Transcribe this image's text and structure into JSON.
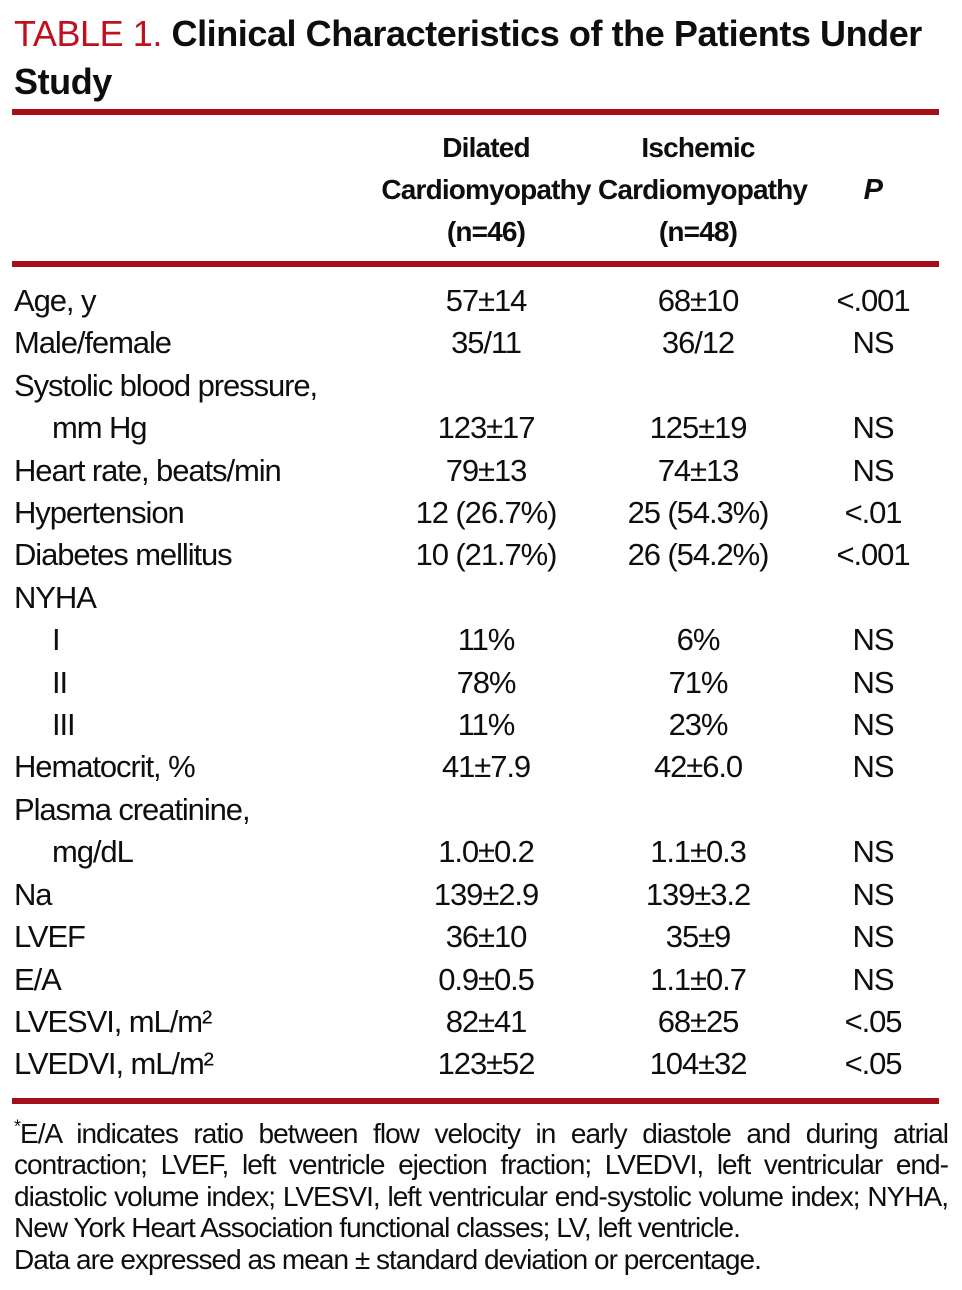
{
  "title": {
    "label": "TABLE 1.",
    "text": "Clinical Characteristics of the Patients Under Study"
  },
  "colors": {
    "title_red": "#c0101e",
    "rule_red": "#a30f1b",
    "text_ink": "#0e0e0e"
  },
  "table": {
    "header": {
      "dilated": {
        "line1": "Dilated",
        "line2": "Cardiomyopathy",
        "line3": "(n=46)"
      },
      "ischemic": {
        "line1": "Ischemic",
        "line2": "Cardiomyopathy",
        "line3": "(n=48)"
      },
      "p_label": "P"
    },
    "rows": [
      {
        "label": "Age, y",
        "indent": false,
        "dilated": "57±14",
        "ischemic": "68±10",
        "p": "<.001"
      },
      {
        "label": "Male/female",
        "indent": false,
        "dilated": "35/11",
        "ischemic": "36/12",
        "p": "NS"
      },
      {
        "label": "Systolic blood pressure,",
        "indent": false,
        "dilated": "",
        "ischemic": "",
        "p": ""
      },
      {
        "label": "mm Hg",
        "indent": true,
        "dilated": "123±17",
        "ischemic": "125±19",
        "p": "NS"
      },
      {
        "label": "Heart rate, beats/min",
        "indent": false,
        "dilated": "79±13",
        "ischemic": "74±13",
        "p": "NS"
      },
      {
        "label": "Hypertension",
        "indent": false,
        "dilated": "12 (26.7%)",
        "ischemic": "25 (54.3%)",
        "p": "<.01"
      },
      {
        "label": "Diabetes mellitus",
        "indent": false,
        "dilated": "10 (21.7%)",
        "ischemic": "26 (54.2%)",
        "p": "<.001"
      },
      {
        "label": "NYHA",
        "indent": false,
        "dilated": "",
        "ischemic": "",
        "p": ""
      },
      {
        "label": "I",
        "indent": true,
        "dilated": "11%",
        "ischemic": "6%",
        "p": "NS"
      },
      {
        "label": "II",
        "indent": true,
        "dilated": "78%",
        "ischemic": "71%",
        "p": "NS"
      },
      {
        "label": "III",
        "indent": true,
        "dilated": "11%",
        "ischemic": "23%",
        "p": "NS"
      },
      {
        "label": "Hematocrit, %",
        "indent": false,
        "dilated": "41±7.9",
        "ischemic": "42±6.0",
        "p": "NS"
      },
      {
        "label": "Plasma creatinine,",
        "indent": false,
        "dilated": "",
        "ischemic": "",
        "p": ""
      },
      {
        "label": "mg/dL",
        "indent": true,
        "dilated": "1.0±0.2",
        "ischemic": "1.1±0.3",
        "p": "NS"
      },
      {
        "label": "Na",
        "indent": false,
        "dilated": "139±2.9",
        "ischemic": "139±3.2",
        "p": "NS"
      },
      {
        "label": "LVEF",
        "indent": false,
        "dilated": "36±10",
        "ischemic": "35±9",
        "p": "NS"
      },
      {
        "label": "E/A",
        "indent": false,
        "dilated": "0.9±0.5",
        "ischemic": "1.1±0.7",
        "p": "NS"
      },
      {
        "label": "LVESVI, mL/m²",
        "indent": false,
        "dilated": "82±41",
        "ischemic": "68±25",
        "p": "<.05"
      },
      {
        "label": "LVEDVI, mL/m²",
        "indent": false,
        "dilated": "123±52",
        "ischemic": "104±32",
        "p": "<.05"
      }
    ]
  },
  "footnote": {
    "marker": "*",
    "text1": "E/A indicates ratio between flow velocity in early diastole and during atrial contraction; LVEF, left ventricle ejection fraction; LVEDVI, left ventricular end-diastolic volume index; LVESVI, left ventricular end-systolic volume index; NYHA, New York Heart Association functional classes; LV, left ventricle.",
    "text2": "Data are expressed as mean ± standard deviation or percentage."
  }
}
